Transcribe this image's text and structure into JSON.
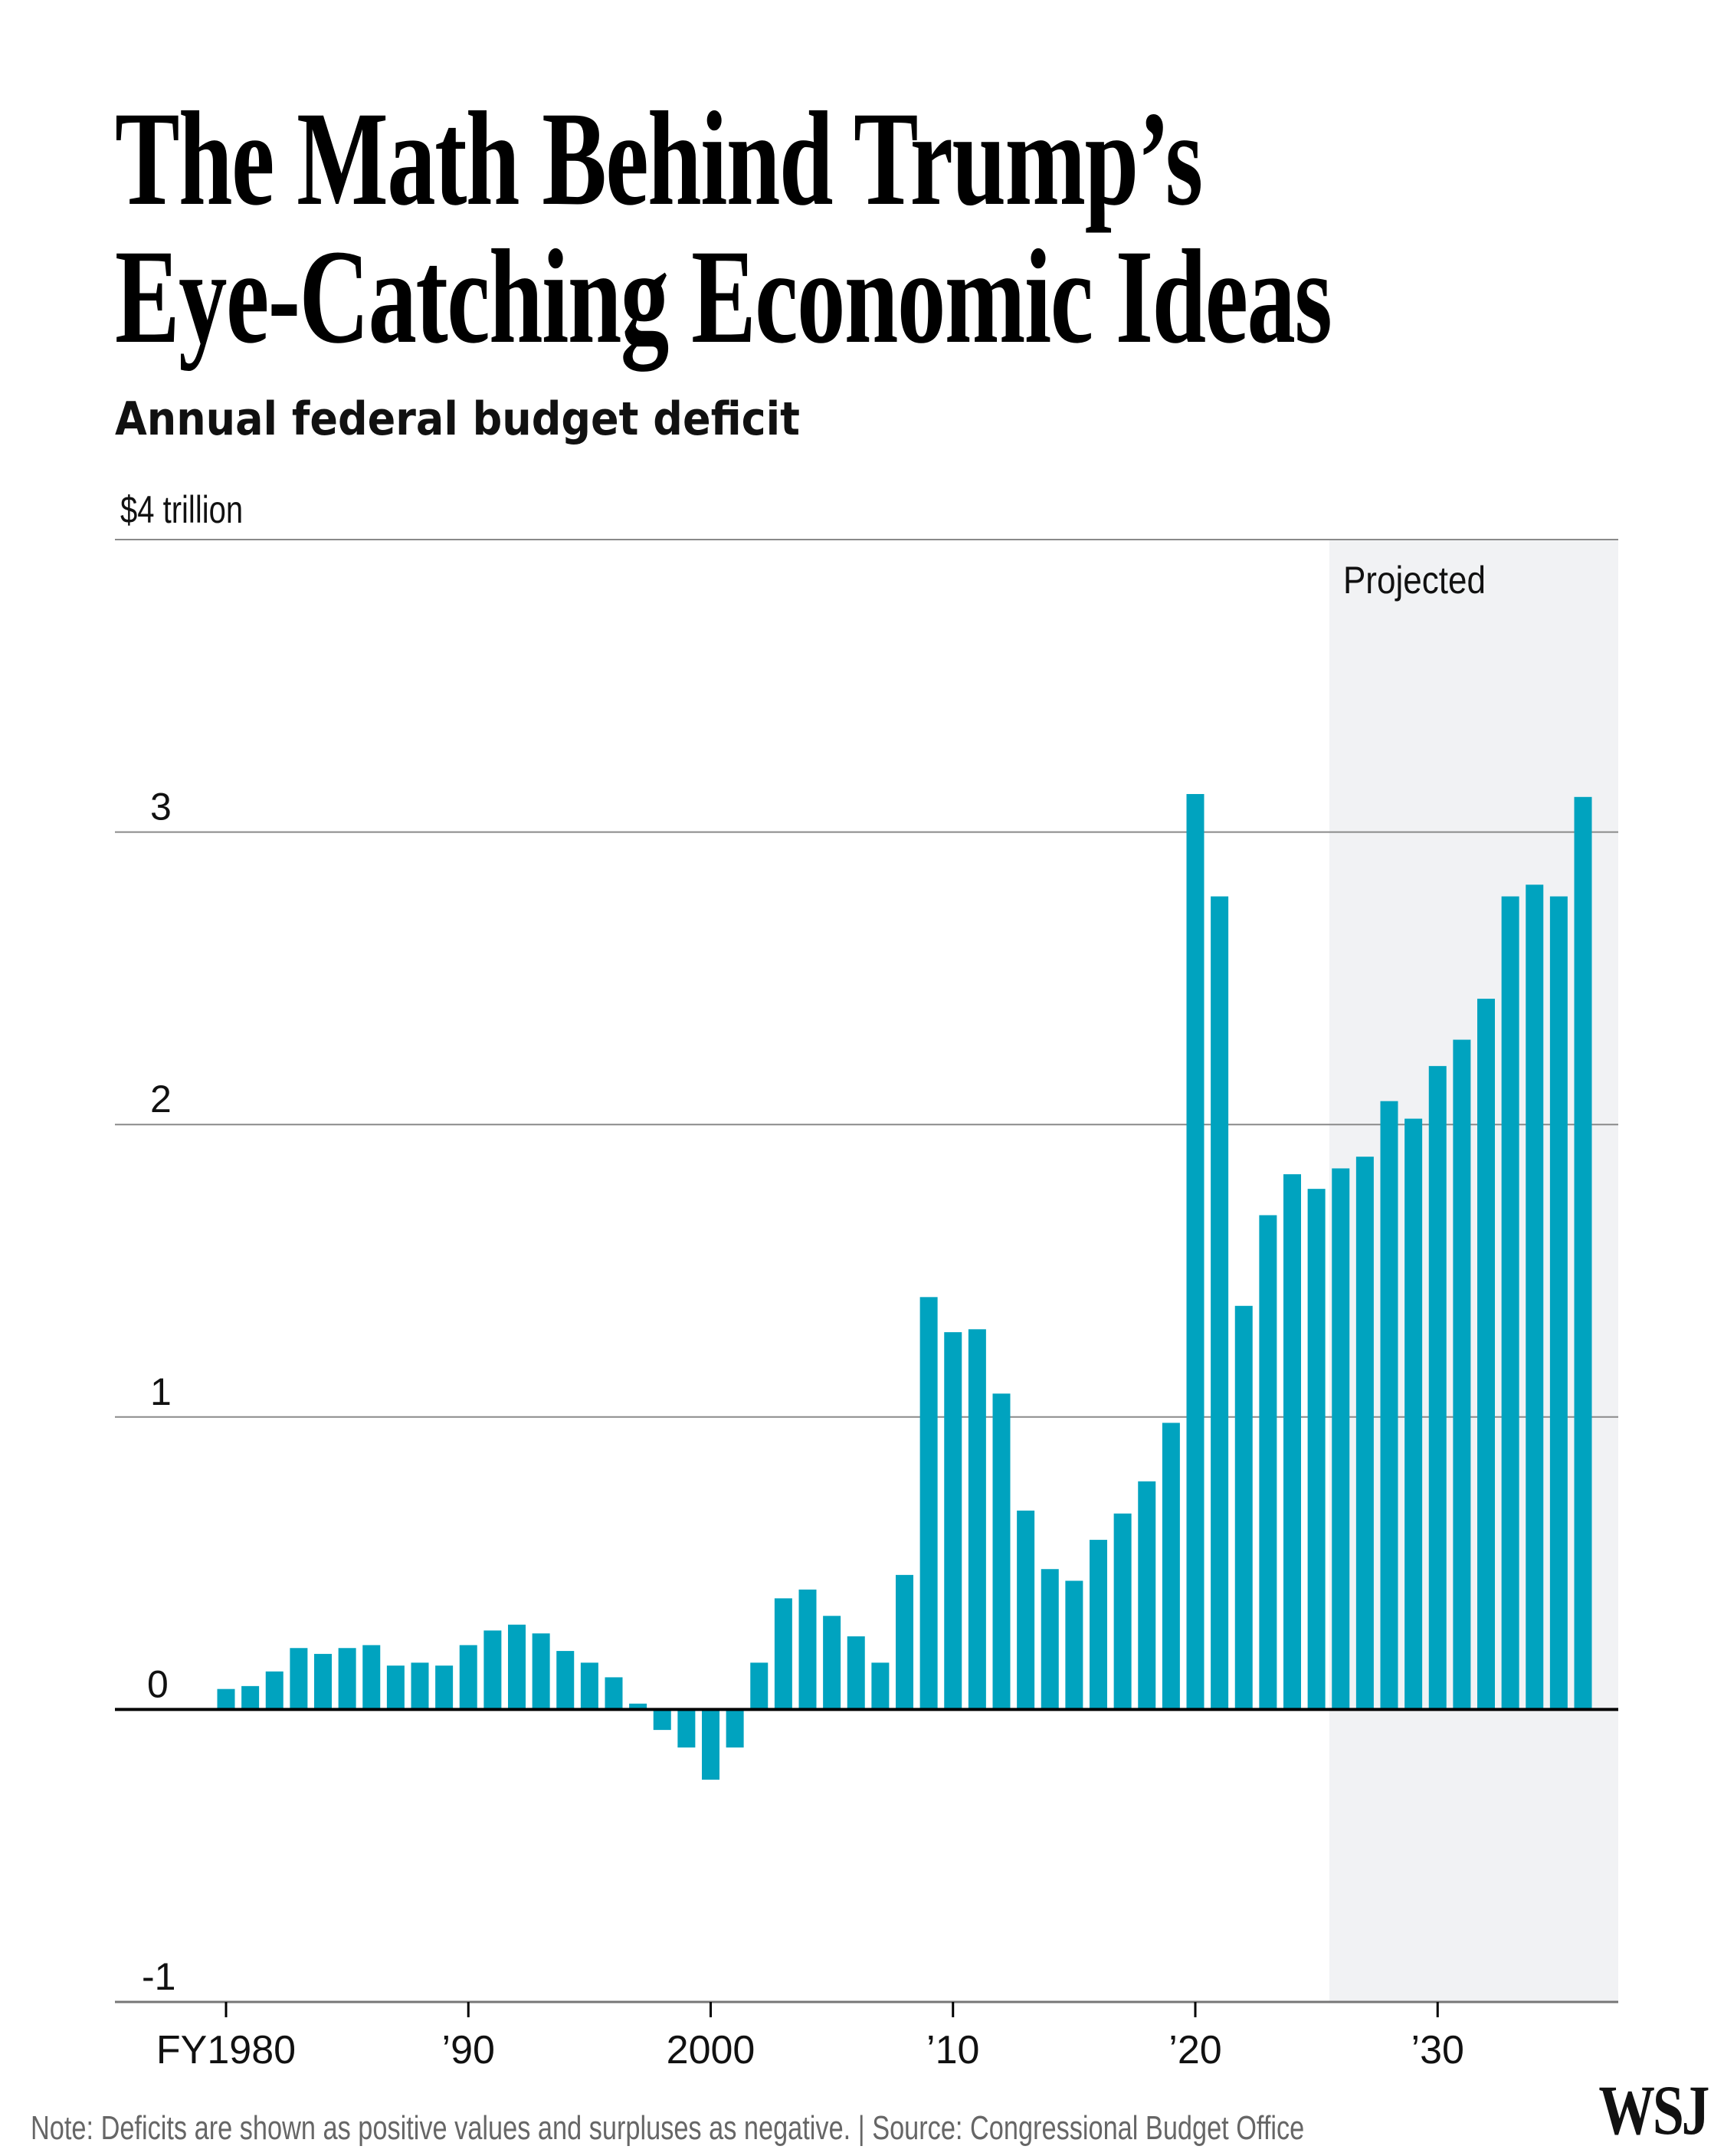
{
  "header": {
    "title_line1": "The Math Behind Trump’s",
    "title_line2": "Eye-Catching Economic Ideas",
    "subtitle": "Annual federal budget deficit"
  },
  "footer": {
    "note": "Note: Deficits are shown as positive values and surpluses as negative. | Source: Congressional Budget Office",
    "logo": "WSJ"
  },
  "colors": {
    "bar": "#00A3BF",
    "projected_shade": "#F1F2F4",
    "gridline": "#8a8a8a",
    "zero_line": "#000000"
  },
  "chart_data": {
    "type": "bar",
    "title": "Annual federal budget deficit",
    "xlabel": "",
    "ylabel": "$ trillion",
    "unit_label": "$4 trillion",
    "ylim": [
      -1,
      4
    ],
    "y_ticks": [
      {
        "value": 4,
        "label": "$4 trillion"
      },
      {
        "value": 3,
        "label": "3"
      },
      {
        "value": 2,
        "label": "2"
      },
      {
        "value": 1,
        "label": "1"
      },
      {
        "value": 0,
        "label": "0"
      },
      {
        "value": -1,
        "label": "-1"
      }
    ],
    "x_ticks": [
      {
        "year": 1980,
        "label": "FY1980"
      },
      {
        "year": 1990,
        "label": "’90"
      },
      {
        "year": 2000,
        "label": "2000"
      },
      {
        "year": 2010,
        "label": "’10"
      },
      {
        "year": 2020,
        "label": "’20"
      },
      {
        "year": 2030,
        "label": "’30"
      }
    ],
    "grid": true,
    "projected_region": {
      "start_year": 2026,
      "end_year": 2036,
      "label": "Projected"
    },
    "categories": [
      1980,
      1981,
      1982,
      1983,
      1984,
      1985,
      1986,
      1987,
      1988,
      1989,
      1990,
      1991,
      1992,
      1993,
      1994,
      1995,
      1996,
      1997,
      1998,
      1999,
      2000,
      2001,
      2002,
      2003,
      2004,
      2005,
      2006,
      2007,
      2008,
      2009,
      2010,
      2011,
      2012,
      2013,
      2014,
      2015,
      2016,
      2017,
      2018,
      2019,
      2020,
      2021,
      2022,
      2023,
      2024,
      2025,
      2026,
      2027,
      2028,
      2029,
      2030,
      2031,
      2032,
      2033,
      2034,
      2035,
      2036
    ],
    "values": [
      0.07,
      0.08,
      0.13,
      0.21,
      0.19,
      0.21,
      0.22,
      0.15,
      0.16,
      0.15,
      0.22,
      0.27,
      0.29,
      0.26,
      0.2,
      0.16,
      0.11,
      0.02,
      -0.07,
      -0.13,
      -0.24,
      -0.13,
      0.16,
      0.38,
      0.41,
      0.32,
      0.25,
      0.16,
      0.46,
      1.41,
      1.29,
      1.3,
      1.08,
      0.68,
      0.48,
      0.44,
      0.58,
      0.67,
      0.78,
      0.98,
      3.13,
      2.78,
      1.38,
      1.69,
      1.83,
      1.78,
      1.85,
      1.89,
      2.08,
      2.02,
      2.2,
      2.29,
      2.43,
      2.78,
      2.82,
      2.78,
      3.12
    ]
  }
}
